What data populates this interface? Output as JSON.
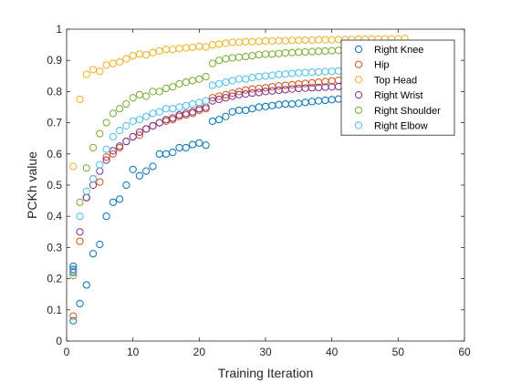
{
  "chart_data": {
    "type": "scatter",
    "xlabel": "Training Iteration",
    "ylabel": "PCKh value",
    "xlim": [
      0,
      60
    ],
    "ylim": [
      0,
      1
    ],
    "xticks": [
      "0",
      "10",
      "20",
      "30",
      "40",
      "50",
      "60"
    ],
    "yticks": [
      "0",
      "0.1",
      "0.2",
      "0.3",
      "0.4",
      "0.5",
      "0.6",
      "0.7",
      "0.8",
      "0.9",
      "1"
    ],
    "grid": false,
    "legend_position": "top-right",
    "series": [
      {
        "name": "Right Knee",
        "color": "#0072BD",
        "points": [
          [
            1,
            0.065
          ],
          [
            1,
            0.24
          ],
          [
            1,
            0.23
          ],
          [
            2,
            0.12
          ],
          [
            3,
            0.18
          ],
          [
            4,
            0.28
          ],
          [
            5,
            0.31
          ],
          [
            6,
            0.4
          ],
          [
            7,
            0.445
          ],
          [
            8,
            0.455
          ],
          [
            9,
            0.5
          ],
          [
            10,
            0.55
          ],
          [
            11,
            0.53
          ],
          [
            12,
            0.545
          ],
          [
            13,
            0.56
          ],
          [
            14,
            0.6
          ],
          [
            15,
            0.6
          ],
          [
            16,
            0.605
          ],
          [
            17,
            0.62
          ],
          [
            18,
            0.62
          ],
          [
            19,
            0.63
          ],
          [
            20,
            0.635
          ],
          [
            21,
            0.628
          ],
          [
            22,
            0.705
          ],
          [
            23,
            0.71
          ],
          [
            24,
            0.72
          ],
          [
            25,
            0.735
          ],
          [
            26,
            0.74
          ],
          [
            27,
            0.74
          ],
          [
            28,
            0.745
          ],
          [
            29,
            0.75
          ],
          [
            30,
            0.752
          ],
          [
            31,
            0.755
          ],
          [
            32,
            0.758
          ],
          [
            33,
            0.76
          ],
          [
            34,
            0.76
          ],
          [
            35,
            0.762
          ],
          [
            36,
            0.765
          ],
          [
            37,
            0.768
          ],
          [
            38,
            0.77
          ],
          [
            39,
            0.772
          ],
          [
            40,
            0.774
          ],
          [
            41,
            0.776
          ],
          [
            42,
            0.777
          ],
          [
            43,
            0.778
          ],
          [
            44,
            0.779
          ],
          [
            45,
            0.78
          ],
          [
            46,
            0.78
          ],
          [
            47,
            0.781
          ],
          [
            48,
            0.782
          ],
          [
            49,
            0.783
          ],
          [
            50,
            0.784
          ]
        ]
      },
      {
        "name": "Hip",
        "color": "#D95319",
        "points": [
          [
            1,
            0.08
          ],
          [
            2,
            0.32
          ],
          [
            3,
            0.46
          ],
          [
            4,
            0.52
          ],
          [
            5,
            0.51
          ],
          [
            6,
            0.59
          ],
          [
            7,
            0.6
          ],
          [
            8,
            0.62
          ],
          [
            9,
            0.64
          ],
          [
            10,
            0.655
          ],
          [
            11,
            0.66
          ],
          [
            12,
            0.68
          ],
          [
            13,
            0.69
          ],
          [
            14,
            0.7
          ],
          [
            15,
            0.705
          ],
          [
            16,
            0.71
          ],
          [
            17,
            0.72
          ],
          [
            18,
            0.725
          ],
          [
            19,
            0.73
          ],
          [
            20,
            0.74
          ],
          [
            21,
            0.745
          ],
          [
            22,
            0.78
          ],
          [
            23,
            0.785
          ],
          [
            24,
            0.79
          ],
          [
            25,
            0.795
          ],
          [
            26,
            0.8
          ],
          [
            27,
            0.805
          ],
          [
            28,
            0.808
          ],
          [
            29,
            0.81
          ],
          [
            30,
            0.812
          ],
          [
            31,
            0.815
          ],
          [
            32,
            0.818
          ],
          [
            33,
            0.82
          ],
          [
            34,
            0.822
          ],
          [
            35,
            0.824
          ],
          [
            36,
            0.826
          ],
          [
            37,
            0.828
          ],
          [
            38,
            0.83
          ],
          [
            39,
            0.832
          ],
          [
            40,
            0.834
          ],
          [
            41,
            0.836
          ],
          [
            42,
            0.838
          ],
          [
            43,
            0.84
          ],
          [
            44,
            0.841
          ],
          [
            45,
            0.842
          ],
          [
            46,
            0.843
          ],
          [
            47,
            0.844
          ],
          [
            48,
            0.845
          ],
          [
            49,
            0.846
          ],
          [
            50,
            0.847
          ]
        ]
      },
      {
        "name": "Top Head",
        "color": "#EDB120",
        "points": [
          [
            1,
            0.56
          ],
          [
            2,
            0.775
          ],
          [
            3,
            0.855
          ],
          [
            4,
            0.87
          ],
          [
            5,
            0.865
          ],
          [
            6,
            0.885
          ],
          [
            7,
            0.89
          ],
          [
            8,
            0.895
          ],
          [
            9,
            0.905
          ],
          [
            10,
            0.915
          ],
          [
            11,
            0.92
          ],
          [
            12,
            0.918
          ],
          [
            13,
            0.925
          ],
          [
            14,
            0.93
          ],
          [
            15,
            0.935
          ],
          [
            16,
            0.935
          ],
          [
            17,
            0.938
          ],
          [
            18,
            0.94
          ],
          [
            19,
            0.942
          ],
          [
            20,
            0.945
          ],
          [
            21,
            0.943
          ],
          [
            22,
            0.95
          ],
          [
            23,
            0.952
          ],
          [
            24,
            0.955
          ],
          [
            25,
            0.958
          ],
          [
            26,
            0.958
          ],
          [
            27,
            0.96
          ],
          [
            28,
            0.96
          ],
          [
            29,
            0.961
          ],
          [
            30,
            0.962
          ],
          [
            31,
            0.962
          ],
          [
            32,
            0.963
          ],
          [
            33,
            0.963
          ],
          [
            34,
            0.964
          ],
          [
            35,
            0.964
          ],
          [
            36,
            0.965
          ],
          [
            37,
            0.965
          ],
          [
            38,
            0.966
          ],
          [
            39,
            0.966
          ],
          [
            40,
            0.966
          ],
          [
            41,
            0.967
          ],
          [
            42,
            0.967
          ],
          [
            43,
            0.967
          ],
          [
            44,
            0.968
          ],
          [
            45,
            0.968
          ],
          [
            46,
            0.968
          ],
          [
            47,
            0.968
          ],
          [
            48,
            0.969
          ],
          [
            49,
            0.969
          ],
          [
            50,
            0.969
          ],
          [
            51,
            0.97
          ]
        ]
      },
      {
        "name": "Right Wrist",
        "color": "#7E2F8E",
        "points": [
          [
            1,
            0.22
          ],
          [
            2,
            0.35
          ],
          [
            3,
            0.46
          ],
          [
            4,
            0.5
          ],
          [
            5,
            0.545
          ],
          [
            6,
            0.58
          ],
          [
            7,
            0.61
          ],
          [
            8,
            0.625
          ],
          [
            9,
            0.64
          ],
          [
            10,
            0.655
          ],
          [
            11,
            0.67
          ],
          [
            12,
            0.68
          ],
          [
            13,
            0.69
          ],
          [
            14,
            0.7
          ],
          [
            15,
            0.71
          ],
          [
            16,
            0.715
          ],
          [
            17,
            0.725
          ],
          [
            18,
            0.73
          ],
          [
            19,
            0.735
          ],
          [
            20,
            0.745
          ],
          [
            21,
            0.75
          ],
          [
            22,
            0.77
          ],
          [
            23,
            0.775
          ],
          [
            24,
            0.78
          ],
          [
            25,
            0.785
          ],
          [
            26,
            0.79
          ],
          [
            27,
            0.792
          ],
          [
            28,
            0.795
          ],
          [
            29,
            0.797
          ],
          [
            30,
            0.8
          ],
          [
            31,
            0.802
          ],
          [
            32,
            0.804
          ],
          [
            33,
            0.806
          ],
          [
            34,
            0.808
          ],
          [
            35,
            0.81
          ],
          [
            36,
            0.811
          ],
          [
            37,
            0.812
          ],
          [
            38,
            0.813
          ],
          [
            39,
            0.814
          ],
          [
            40,
            0.815
          ],
          [
            41,
            0.816
          ],
          [
            42,
            0.817
          ],
          [
            43,
            0.818
          ],
          [
            44,
            0.819
          ],
          [
            45,
            0.82
          ],
          [
            46,
            0.821
          ],
          [
            47,
            0.822
          ],
          [
            48,
            0.823
          ],
          [
            49,
            0.824
          ],
          [
            50,
            0.825
          ]
        ]
      },
      {
        "name": "Right Shoulder",
        "color": "#77AC30",
        "points": [
          [
            1,
            0.21
          ],
          [
            2,
            0.445
          ],
          [
            3,
            0.555
          ],
          [
            4,
            0.62
          ],
          [
            5,
            0.665
          ],
          [
            6,
            0.7
          ],
          [
            7,
            0.73
          ],
          [
            8,
            0.745
          ],
          [
            9,
            0.76
          ],
          [
            10,
            0.78
          ],
          [
            11,
            0.79
          ],
          [
            12,
            0.785
          ],
          [
            13,
            0.8
          ],
          [
            14,
            0.8
          ],
          [
            15,
            0.81
          ],
          [
            16,
            0.815
          ],
          [
            17,
            0.825
          ],
          [
            18,
            0.83
          ],
          [
            19,
            0.835
          ],
          [
            20,
            0.84
          ],
          [
            21,
            0.848
          ],
          [
            22,
            0.89
          ],
          [
            23,
            0.9
          ],
          [
            24,
            0.905
          ],
          [
            25,
            0.908
          ],
          [
            26,
            0.91
          ],
          [
            27,
            0.912
          ],
          [
            28,
            0.915
          ],
          [
            29,
            0.918
          ],
          [
            30,
            0.92
          ],
          [
            31,
            0.92
          ],
          [
            32,
            0.922
          ],
          [
            33,
            0.924
          ],
          [
            34,
            0.925
          ],
          [
            35,
            0.926
          ],
          [
            36,
            0.927
          ],
          [
            37,
            0.928
          ],
          [
            38,
            0.929
          ],
          [
            39,
            0.93
          ],
          [
            40,
            0.931
          ],
          [
            41,
            0.932
          ],
          [
            42,
            0.933
          ],
          [
            43,
            0.934
          ],
          [
            44,
            0.935
          ],
          [
            45,
            0.935
          ],
          [
            46,
            0.936
          ],
          [
            47,
            0.937
          ],
          [
            48,
            0.938
          ],
          [
            49,
            0.939
          ],
          [
            50,
            0.94
          ]
        ]
      },
      {
        "name": "Right Elbow",
        "color": "#4DBEEE",
        "points": [
          [
            1,
            0.225
          ],
          [
            2,
            0.4
          ],
          [
            3,
            0.48
          ],
          [
            4,
            0.52
          ],
          [
            5,
            0.565
          ],
          [
            6,
            0.615
          ],
          [
            7,
            0.655
          ],
          [
            8,
            0.675
          ],
          [
            9,
            0.69
          ],
          [
            10,
            0.705
          ],
          [
            11,
            0.71
          ],
          [
            12,
            0.72
          ],
          [
            13,
            0.73
          ],
          [
            14,
            0.735
          ],
          [
            15,
            0.745
          ],
          [
            16,
            0.745
          ],
          [
            17,
            0.75
          ],
          [
            18,
            0.755
          ],
          [
            19,
            0.76
          ],
          [
            20,
            0.765
          ],
          [
            21,
            0.77
          ],
          [
            22,
            0.82
          ],
          [
            23,
            0.825
          ],
          [
            24,
            0.83
          ],
          [
            25,
            0.835
          ],
          [
            26,
            0.84
          ],
          [
            27,
            0.84
          ],
          [
            28,
            0.845
          ],
          [
            29,
            0.848
          ],
          [
            30,
            0.85
          ],
          [
            31,
            0.852
          ],
          [
            32,
            0.855
          ],
          [
            33,
            0.856
          ],
          [
            34,
            0.858
          ],
          [
            35,
            0.86
          ],
          [
            36,
            0.861
          ],
          [
            37,
            0.862
          ],
          [
            38,
            0.863
          ],
          [
            39,
            0.864
          ],
          [
            40,
            0.865
          ],
          [
            41,
            0.866
          ],
          [
            42,
            0.867
          ],
          [
            43,
            0.868
          ],
          [
            44,
            0.869
          ],
          [
            45,
            0.87
          ],
          [
            46,
            0.871
          ],
          [
            47,
            0.872
          ],
          [
            48,
            0.873
          ],
          [
            49,
            0.874
          ],
          [
            50,
            0.875
          ]
        ]
      }
    ]
  }
}
